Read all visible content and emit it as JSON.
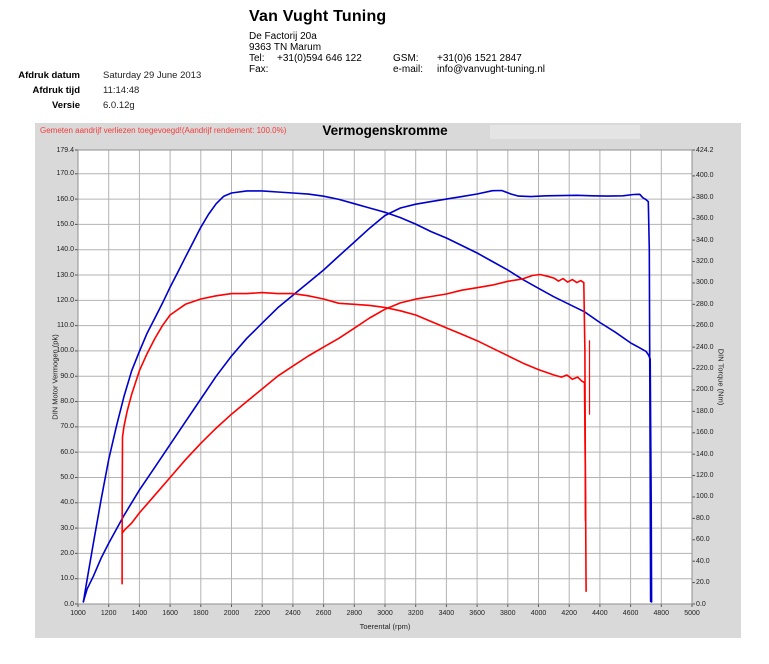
{
  "header": {
    "company": "Van Vught Tuning",
    "address_line1": "De Factorij 20a",
    "address_line2": "9363 TN Marum",
    "tel_label": "Tel:",
    "tel": "+31(0)594 646 122",
    "fax_label": "Fax:",
    "fax": "",
    "gsm_label": "GSM:",
    "gsm": "+31(0)6 1521 2847",
    "email_label": "e-mail:",
    "email": "info@vanvught-tuning.nl"
  },
  "meta": {
    "rows": [
      {
        "label": "Afdruk datum",
        "value": "Saturday 29 June 2013"
      },
      {
        "label": "Afdruk tijd",
        "value": "11:14:48"
      },
      {
        "label": "Versie",
        "value": "6.0.12g"
      }
    ]
  },
  "chart": {
    "notice": "Gemeten aandrijf verliezen toegevoegd!(Aandrijf rendement: 100.0%)",
    "panel_color": "#d9d9d9",
    "grid_color": "#b3b3b3",
    "border_color": "#8f8f8f"
  },
  "chart_data": {
    "type": "line",
    "title": "Vermogenskromme",
    "grid": true,
    "legend": "none",
    "x_axis": {
      "label": "Toerental (rpm)",
      "min": 1000,
      "max": 5000,
      "ticks": [
        1000,
        1200,
        1400,
        1600,
        1800,
        2000,
        2200,
        2400,
        2600,
        2800,
        3000,
        3200,
        3400,
        3600,
        3800,
        4000,
        4200,
        4400,
        4600,
        4800,
        5000
      ]
    },
    "y_left": {
      "label": "DIN Motor Vermogen (pk)",
      "min": 0,
      "max": 179.4,
      "ticks": [
        179.4,
        170,
        160,
        150,
        140,
        130,
        120,
        110,
        100,
        90,
        80,
        70,
        60,
        50,
        40,
        30,
        20,
        10,
        0
      ]
    },
    "y_right": {
      "label": "DIN Torque (Nm)",
      "min": 0,
      "max": 424.2,
      "ticks": [
        424.2,
        400,
        380,
        360,
        340,
        320,
        300,
        280,
        260,
        240,
        220,
        200,
        180,
        160,
        140,
        120,
        100,
        80,
        60,
        40,
        20,
        0
      ]
    },
    "series": [
      {
        "name": "torque-blue",
        "color": "#0000cd",
        "axis": "right",
        "width": 1.6,
        "points": [
          [
            1035,
            2
          ],
          [
            1055,
            19
          ],
          [
            1100,
            57
          ],
          [
            1150,
            97
          ],
          [
            1200,
            135
          ],
          [
            1250,
            166
          ],
          [
            1300,
            194
          ],
          [
            1350,
            218
          ],
          [
            1400,
            236
          ],
          [
            1450,
            253
          ],
          [
            1500,
            267
          ],
          [
            1550,
            281
          ],
          [
            1600,
            296
          ],
          [
            1650,
            310
          ],
          [
            1700,
            324
          ],
          [
            1750,
            338
          ],
          [
            1800,
            352
          ],
          [
            1850,
            364
          ],
          [
            1900,
            374
          ],
          [
            1950,
            381
          ],
          [
            2000,
            384
          ],
          [
            2100,
            386
          ],
          [
            2200,
            386
          ],
          [
            2300,
            385
          ],
          [
            2400,
            384
          ],
          [
            2500,
            383
          ],
          [
            2600,
            381
          ],
          [
            2700,
            378
          ],
          [
            2800,
            374
          ],
          [
            2900,
            370
          ],
          [
            3000,
            366
          ],
          [
            3100,
            361
          ],
          [
            3200,
            355
          ],
          [
            3300,
            348
          ],
          [
            3400,
            342
          ],
          [
            3500,
            335
          ],
          [
            3600,
            328
          ],
          [
            3700,
            320
          ],
          [
            3800,
            312
          ],
          [
            3900,
            303
          ],
          [
            4000,
            295
          ],
          [
            4100,
            287
          ],
          [
            4200,
            280
          ],
          [
            4300,
            273
          ],
          [
            4400,
            263
          ],
          [
            4500,
            254
          ],
          [
            4600,
            244
          ],
          [
            4650,
            240
          ],
          [
            4700,
            236
          ],
          [
            4715,
            233
          ],
          [
            4728,
            229
          ],
          [
            4734,
            95
          ],
          [
            4737,
            2
          ]
        ]
      },
      {
        "name": "power-blue",
        "color": "#0000cd",
        "axis": "left",
        "width": 1.6,
        "points": [
          [
            1035,
            1
          ],
          [
            1060,
            6
          ],
          [
            1100,
            11
          ],
          [
            1150,
            18
          ],
          [
            1200,
            24
          ],
          [
            1300,
            35
          ],
          [
            1400,
            45
          ],
          [
            1500,
            54
          ],
          [
            1600,
            63
          ],
          [
            1700,
            72
          ],
          [
            1800,
            81
          ],
          [
            1900,
            90
          ],
          [
            2000,
            98
          ],
          [
            2100,
            105
          ],
          [
            2200,
            111
          ],
          [
            2300,
            117
          ],
          [
            2400,
            122
          ],
          [
            2500,
            127
          ],
          [
            2600,
            132
          ],
          [
            2700,
            137.5
          ],
          [
            2800,
            143
          ],
          [
            2900,
            148.5
          ],
          [
            3000,
            153.5
          ],
          [
            3100,
            156.5
          ],
          [
            3200,
            158
          ],
          [
            3300,
            159
          ],
          [
            3400,
            160
          ],
          [
            3500,
            161
          ],
          [
            3600,
            162
          ],
          [
            3700,
            163.3
          ],
          [
            3760,
            163.4
          ],
          [
            3820,
            162
          ],
          [
            3870,
            161.2
          ],
          [
            3950,
            161
          ],
          [
            4050,
            161.3
          ],
          [
            4150,
            161.4
          ],
          [
            4250,
            161.5
          ],
          [
            4350,
            161.3
          ],
          [
            4450,
            161.2
          ],
          [
            4550,
            161.3
          ],
          [
            4620,
            161.8
          ],
          [
            4660,
            161.9
          ],
          [
            4680,
            160.5
          ],
          [
            4700,
            159.8
          ],
          [
            4715,
            159
          ],
          [
            4722,
            140
          ],
          [
            4727,
            60
          ],
          [
            4730,
            1
          ]
        ]
      },
      {
        "name": "torque-red",
        "color": "#ff0000",
        "axis": "right",
        "width": 1.6,
        "points": [
          [
            1287,
            19
          ],
          [
            1288,
            95
          ],
          [
            1290,
            156
          ],
          [
            1300,
            166
          ],
          [
            1320,
            180
          ],
          [
            1350,
            196
          ],
          [
            1400,
            218
          ],
          [
            1450,
            234
          ],
          [
            1500,
            248
          ],
          [
            1550,
            260
          ],
          [
            1600,
            270
          ],
          [
            1700,
            280
          ],
          [
            1800,
            285
          ],
          [
            1900,
            288
          ],
          [
            2000,
            290
          ],
          [
            2100,
            290
          ],
          [
            2200,
            291
          ],
          [
            2300,
            290
          ],
          [
            2400,
            290
          ],
          [
            2500,
            288
          ],
          [
            2600,
            285
          ],
          [
            2700,
            281
          ],
          [
            2800,
            280
          ],
          [
            2900,
            279
          ],
          [
            3000,
            277
          ],
          [
            3100,
            274
          ],
          [
            3200,
            270
          ],
          [
            3300,
            264
          ],
          [
            3400,
            258
          ],
          [
            3500,
            252
          ],
          [
            3600,
            246
          ],
          [
            3700,
            239
          ],
          [
            3800,
            232
          ],
          [
            3900,
            225
          ],
          [
            4000,
            219
          ],
          [
            4100,
            214
          ],
          [
            4150,
            212
          ],
          [
            4185,
            214
          ],
          [
            4220,
            210
          ],
          [
            4255,
            212
          ],
          [
            4285,
            208
          ],
          [
            4300,
            207
          ],
          [
            4306,
            106
          ],
          [
            4310,
            12
          ]
        ]
      },
      {
        "name": "power-red",
        "color": "#ff0000",
        "axis": "left",
        "width": 1.6,
        "points": [
          [
            1288,
            28
          ],
          [
            1300,
            29
          ],
          [
            1350,
            32
          ],
          [
            1400,
            36
          ],
          [
            1500,
            43
          ],
          [
            1600,
            50
          ],
          [
            1700,
            57
          ],
          [
            1800,
            63.5
          ],
          [
            1900,
            69.5
          ],
          [
            2000,
            75
          ],
          [
            2100,
            80
          ],
          [
            2200,
            85
          ],
          [
            2300,
            90
          ],
          [
            2400,
            94
          ],
          [
            2500,
            98
          ],
          [
            2600,
            101.5
          ],
          [
            2700,
            105
          ],
          [
            2800,
            109
          ],
          [
            2900,
            113
          ],
          [
            3000,
            116.5
          ],
          [
            3100,
            119
          ],
          [
            3200,
            120.5
          ],
          [
            3300,
            121.5
          ],
          [
            3400,
            122.5
          ],
          [
            3500,
            124
          ],
          [
            3600,
            125
          ],
          [
            3700,
            126
          ],
          [
            3800,
            127.5
          ],
          [
            3900,
            128.5
          ],
          [
            3960,
            129.8
          ],
          [
            4010,
            130.2
          ],
          [
            4060,
            129.5
          ],
          [
            4100,
            128.8
          ],
          [
            4130,
            127.6
          ],
          [
            4160,
            128.6
          ],
          [
            4190,
            127.2
          ],
          [
            4220,
            128.2
          ],
          [
            4250,
            127
          ],
          [
            4275,
            127.8
          ],
          [
            4295,
            127
          ],
          [
            4302,
            100
          ],
          [
            4306,
            33
          ]
        ]
      },
      {
        "name": "drop-spike-red",
        "color": "#ff0000",
        "axis": "left",
        "width": 1.2,
        "points": [
          [
            4332,
            104
          ],
          [
            4332,
            75
          ]
        ]
      }
    ]
  }
}
